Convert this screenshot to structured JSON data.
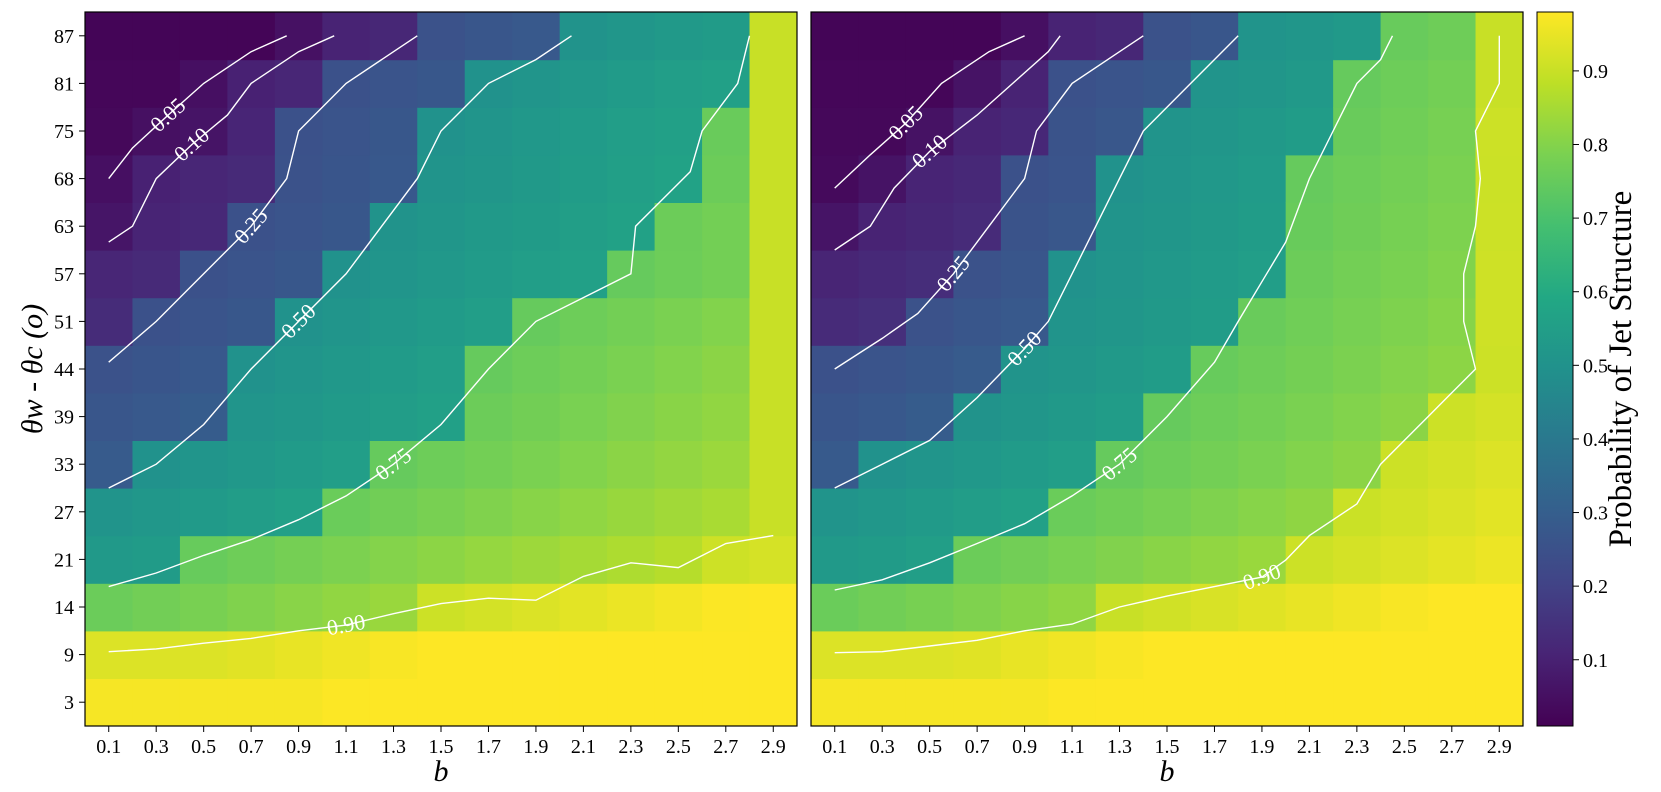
{
  "chart_data": [
    {
      "type": "heatmap",
      "panel": "left",
      "xlabel": "b",
      "ylabel": "θw - θc (o)",
      "x": [
        0.1,
        0.3,
        0.5,
        0.7,
        0.9,
        1.1,
        1.3,
        1.5,
        1.7,
        1.9,
        2.1,
        2.3,
        2.5,
        2.7,
        2.9
      ],
      "y": [
        3,
        9,
        14,
        21,
        27,
        33,
        39,
        44,
        51,
        57,
        63,
        68,
        75,
        81,
        87
      ],
      "x_tick_labels": [
        "0.1",
        "0.3",
        "0.5",
        "0.7",
        "0.9",
        "1.1",
        "1.3",
        "1.5",
        "1.7",
        "1.9",
        "2.1",
        "2.3",
        "2.5",
        "2.7",
        "2.9"
      ],
      "y_tick_labels": [
        "3",
        "9",
        "14",
        "21",
        "27",
        "33",
        "39",
        "44",
        "51",
        "57",
        "63",
        "68",
        "75",
        "81",
        "87"
      ],
      "colormap": "viridis",
      "contours": [
        {
          "level": 0.05,
          "label": "0.05",
          "points": [
            [
              0.1,
              68
            ],
            [
              0.2,
              72.5
            ],
            [
              0.35,
              77
            ],
            [
              0.5,
              81
            ],
            [
              0.7,
              85
            ],
            [
              0.85,
              87
            ]
          ]
        },
        {
          "level": 0.1,
          "label": "0.10",
          "points": [
            [
              0.1,
              61
            ],
            [
              0.2,
              63
            ],
            [
              0.3,
              68
            ],
            [
              0.45,
              73
            ],
            [
              0.6,
              77
            ],
            [
              0.7,
              81
            ],
            [
              0.9,
              85
            ],
            [
              1.05,
              87
            ]
          ]
        },
        {
          "level": 0.25,
          "label": "0.25",
          "points": [
            [
              0.1,
              45
            ],
            [
              0.3,
              51
            ],
            [
              0.5,
              57
            ],
            [
              0.7,
              63
            ],
            [
              0.85,
              68
            ],
            [
              0.9,
              75
            ],
            [
              1.1,
              81
            ],
            [
              1.3,
              85
            ],
            [
              1.4,
              87
            ]
          ]
        },
        {
          "level": 0.5,
          "label": "0.50",
          "points": [
            [
              0.1,
              30
            ],
            [
              0.3,
              33
            ],
            [
              0.5,
              38
            ],
            [
              0.7,
              44
            ],
            [
              0.9,
              51
            ],
            [
              1.1,
              57
            ],
            [
              1.25,
              63
            ],
            [
              1.4,
              68
            ],
            [
              1.5,
              75
            ],
            [
              1.7,
              81
            ],
            [
              1.9,
              84
            ],
            [
              2.05,
              87
            ]
          ]
        },
        {
          "level": 0.75,
          "label": "0.75",
          "points": [
            [
              0.1,
              17
            ],
            [
              0.3,
              19
            ],
            [
              0.5,
              21.5
            ],
            [
              0.7,
              23.5
            ],
            [
              0.9,
              26
            ],
            [
              1.1,
              29
            ],
            [
              1.3,
              33
            ],
            [
              1.5,
              38
            ],
            [
              1.7,
              44
            ],
            [
              1.9,
              51
            ],
            [
              2.1,
              54
            ],
            [
              2.3,
              57
            ],
            [
              2.32,
              63
            ],
            [
              2.4,
              65
            ],
            [
              2.55,
              69
            ],
            [
              2.6,
              75
            ],
            [
              2.75,
              81
            ],
            [
              2.8,
              87
            ]
          ]
        },
        {
          "level": 0.9,
          "label": "0.90",
          "points": [
            [
              0.1,
              9.3
            ],
            [
              0.3,
              9.6
            ],
            [
              0.5,
              10.2
            ],
            [
              0.7,
              10.7
            ],
            [
              0.9,
              11.5
            ],
            [
              1.1,
              12.1
            ],
            [
              1.3,
              13.3
            ],
            [
              1.5,
              14.5
            ],
            [
              1.7,
              15.3
            ],
            [
              1.9,
              15
            ],
            [
              2.1,
              18.5
            ],
            [
              2.3,
              20.5
            ],
            [
              2.5,
              19.8
            ],
            [
              2.7,
              23
            ],
            [
              2.9,
              24
            ]
          ]
        }
      ]
    },
    {
      "type": "heatmap",
      "panel": "right",
      "xlabel": "b",
      "x": [
        0.1,
        0.3,
        0.5,
        0.7,
        0.9,
        1.1,
        1.3,
        1.5,
        1.7,
        1.9,
        2.1,
        2.3,
        2.5,
        2.7,
        2.9
      ],
      "y": [
        3,
        9,
        14,
        21,
        27,
        33,
        39,
        44,
        51,
        57,
        63,
        68,
        75,
        81,
        87
      ],
      "x_tick_labels": [
        "0.1",
        "0.3",
        "0.5",
        "0.7",
        "0.9",
        "1.1",
        "1.3",
        "1.5",
        "1.7",
        "1.9",
        "2.1",
        "2.3",
        "2.5",
        "2.7",
        "2.9"
      ],
      "colormap": "viridis",
      "contours": [
        {
          "level": 0.05,
          "label": "0.05",
          "points": [
            [
              0.1,
              67
            ],
            [
              0.25,
              71.5
            ],
            [
              0.4,
              76
            ],
            [
              0.55,
              81
            ],
            [
              0.75,
              85
            ],
            [
              0.9,
              87
            ]
          ]
        },
        {
          "level": 0.1,
          "label": "0.10",
          "points": [
            [
              0.1,
              60
            ],
            [
              0.25,
              63
            ],
            [
              0.35,
              67
            ],
            [
              0.5,
              72
            ],
            [
              0.7,
              77
            ],
            [
              0.85,
              81
            ],
            [
              1.0,
              85
            ],
            [
              1.05,
              87
            ]
          ]
        },
        {
          "level": 0.25,
          "label": "0.25",
          "points": [
            [
              0.1,
              44
            ],
            [
              0.3,
              48.5
            ],
            [
              0.45,
              52
            ],
            [
              0.6,
              57
            ],
            [
              0.75,
              63
            ],
            [
              0.9,
              68
            ],
            [
              0.95,
              75
            ],
            [
              1.1,
              81
            ],
            [
              1.3,
              85
            ],
            [
              1.4,
              87
            ]
          ]
        },
        {
          "level": 0.5,
          "label": "0.50",
          "points": [
            [
              0.1,
              30
            ],
            [
              0.3,
              33
            ],
            [
              0.5,
              36
            ],
            [
              0.7,
              41
            ],
            [
              0.9,
              47
            ],
            [
              1.0,
              51
            ],
            [
              1.1,
              57
            ],
            [
              1.2,
              63
            ],
            [
              1.3,
              68
            ],
            [
              1.4,
              75
            ],
            [
              1.6,
              81
            ],
            [
              1.8,
              87
            ]
          ]
        },
        {
          "level": 0.75,
          "label": "0.75",
          "points": [
            [
              0.1,
              16.5
            ],
            [
              0.3,
              18
            ],
            [
              0.5,
              20.5
            ],
            [
              0.7,
              23
            ],
            [
              0.9,
              25.5
            ],
            [
              1.1,
              29
            ],
            [
              1.3,
              33
            ],
            [
              1.5,
              39
            ],
            [
              1.7,
              45
            ],
            [
              1.8,
              51
            ],
            [
              1.9,
              56
            ],
            [
              2.0,
              61
            ],
            [
              2.1,
              68
            ],
            [
              2.2,
              75
            ],
            [
              2.3,
              81
            ],
            [
              2.4,
              84
            ],
            [
              2.45,
              87
            ]
          ]
        },
        {
          "level": 0.9,
          "label": "0.90",
          "points": [
            [
              0.1,
              9.2
            ],
            [
              0.3,
              9.3
            ],
            [
              0.5,
              9.9
            ],
            [
              0.7,
              10.5
            ],
            [
              0.9,
              11.5
            ],
            [
              1.1,
              12.2
            ],
            [
              1.3,
              14
            ],
            [
              1.5,
              15.6
            ],
            [
              1.7,
              17
            ],
            [
              1.9,
              18.4
            ],
            [
              2.0,
              20.9
            ],
            [
              2.1,
              24
            ],
            [
              2.3,
              28
            ],
            [
              2.4,
              33
            ],
            [
              2.6,
              39
            ],
            [
              2.7,
              41.5
            ],
            [
              2.8,
              44
            ],
            [
              2.75,
              51
            ],
            [
              2.75,
              57
            ],
            [
              2.8,
              63
            ],
            [
              2.82,
              68
            ],
            [
              2.8,
              75
            ],
            [
              2.9,
              81
            ],
            [
              2.9,
              87
            ]
          ]
        }
      ]
    }
  ],
  "colorbar": {
    "label": "Probability of Jet Structure",
    "ticks": [
      0.1,
      0.2,
      0.3,
      0.4,
      0.5,
      0.6,
      0.7,
      0.8,
      0.9
    ],
    "tick_labels": [
      "0.1",
      "0.2",
      "0.3",
      "0.4",
      "0.5",
      "0.6",
      "0.7",
      "0.8",
      "0.9"
    ],
    "range": [
      0.01,
      0.98
    ],
    "colormap": "viridis"
  }
}
